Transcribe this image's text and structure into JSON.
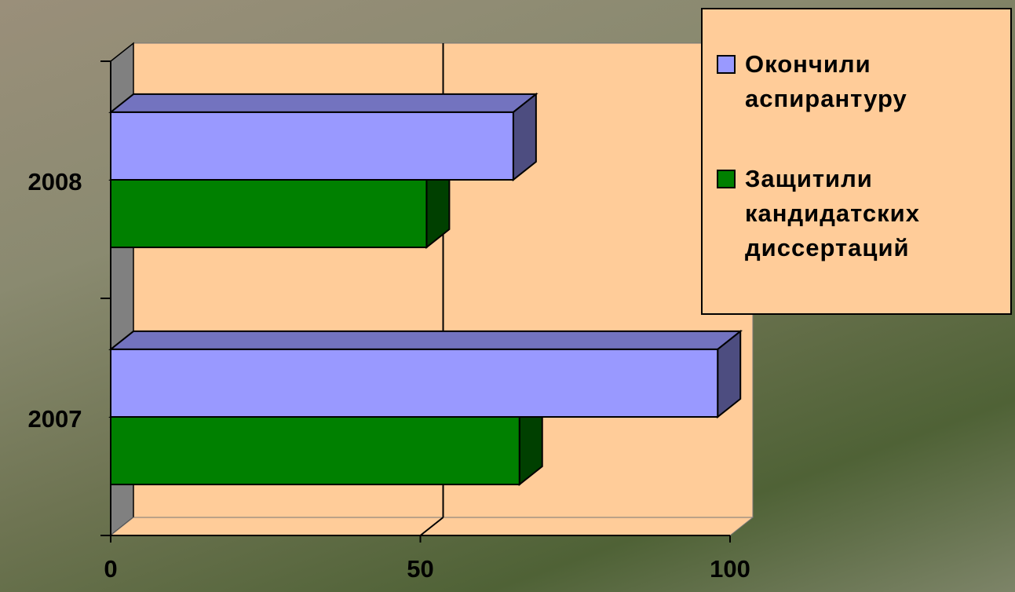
{
  "chart_data": {
    "type": "bar3d",
    "orientation": "horizontal",
    "categories": [
      "2007",
      "2008"
    ],
    "series": [
      {
        "name": "Окончили аспирантуру",
        "color": "#9999ff",
        "values": [
          98,
          65
        ]
      },
      {
        "name": "Защитили кандидатских диссертаций",
        "color": "#008000",
        "values": [
          66,
          51
        ]
      }
    ],
    "xlim": [
      0,
      100
    ],
    "xticks": [
      0,
      50,
      100
    ],
    "grid": true,
    "legend": "top-right"
  }
}
